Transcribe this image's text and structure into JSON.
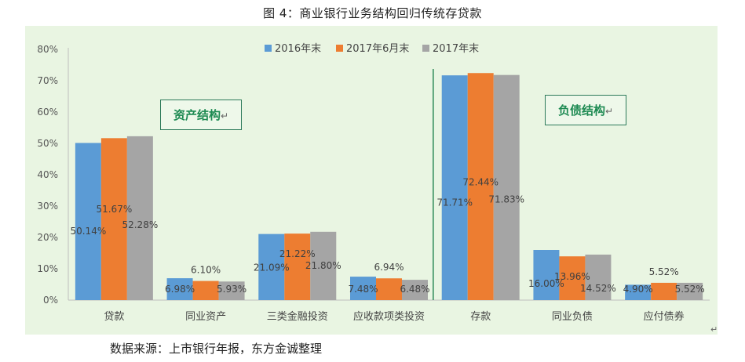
{
  "figure_title": "图 4：商业银行业务结构回归传统存贷款",
  "source": "数据来源：上市银行年报，东方金诚整理",
  "annotations": {
    "asset": "资产结构",
    "liability": "负债结构",
    "return_mark": "↵"
  },
  "colors": {
    "panel_bg": "#e9f5e2",
    "divider": "#2e8b57",
    "series": [
      "#5b9bd5",
      "#ed7d31",
      "#a5a5a5"
    ]
  },
  "chart_data": {
    "type": "bar",
    "categories": [
      "贷款",
      "同业资产",
      "三类金融投资",
      "应收款项类投资",
      "存款",
      "同业负债",
      "应付债券"
    ],
    "series": [
      {
        "name": "2016年末",
        "values": [
          50.14,
          6.98,
          21.09,
          7.48,
          71.71,
          16.0,
          4.9
        ],
        "labels": [
          "50.14%",
          "6.98%",
          "21.09%",
          "7.48%",
          "71.71%",
          "16.00%",
          "4.90%"
        ]
      },
      {
        "name": "2017年6月末",
        "values": [
          51.67,
          6.1,
          21.22,
          6.94,
          72.44,
          13.96,
          5.52
        ],
        "labels": [
          "51.67%",
          "6.10%",
          "21.22%",
          "6.94%",
          "72.44%",
          "13.96%",
          "5.52%"
        ]
      },
      {
        "name": "2017年末",
        "values": [
          52.28,
          5.93,
          21.8,
          6.48,
          71.83,
          14.52,
          5.52
        ],
        "labels": [
          "52.28%",
          "5.93%",
          "21.80%",
          "6.48%",
          "71.83%",
          "14.52%",
          "5.52%"
        ]
      }
    ],
    "yticks": [
      "0%",
      "10%",
      "20%",
      "30%",
      "40%",
      "50%",
      "60%",
      "70%",
      "80%"
    ],
    "ylim": [
      0,
      80
    ],
    "legend_position": "top-center",
    "grid": false,
    "divider_after_category": 3
  }
}
